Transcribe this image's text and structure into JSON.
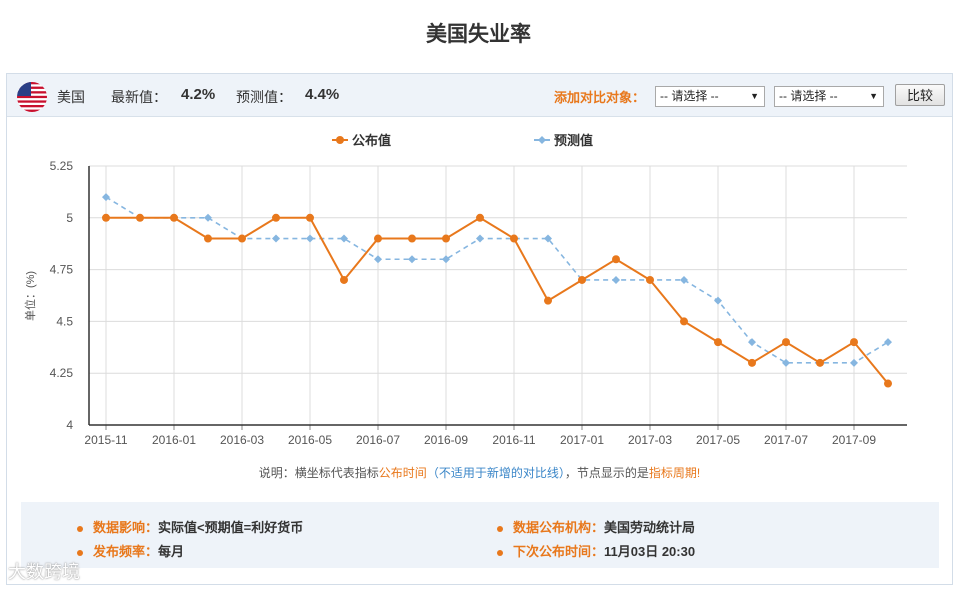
{
  "page_title": "美国失业率",
  "header": {
    "country": "美国",
    "latest_label": "最新值：",
    "latest_value": "4.2%",
    "forecast_label": "预测值：",
    "forecast_value": "4.4%",
    "compare_label": "添加对比对象：",
    "select1": "-- 请选择 --",
    "select2": "-- 请选择 --",
    "compare_button": "比较"
  },
  "chart_data": {
    "type": "line",
    "title": "",
    "ylabel": "单位：(%)",
    "xlabel": "",
    "ylim": [
      4,
      5.25
    ],
    "yticks": [
      4,
      4.25,
      4.5,
      4.75,
      5,
      5.25
    ],
    "ytick_labels": [
      "4",
      "4.25",
      "4.5",
      "4.75",
      "5",
      "5.25"
    ],
    "x": [
      "2015-11",
      "2015-12",
      "2016-01",
      "2016-02",
      "2016-03",
      "2016-04",
      "2016-05",
      "2016-06",
      "2016-07",
      "2016-08",
      "2016-09",
      "2016-10",
      "2016-11",
      "2016-12",
      "2017-01",
      "2017-02",
      "2017-03",
      "2017-04",
      "2017-05",
      "2017-06",
      "2017-07",
      "2017-08",
      "2017-09",
      "2017-10"
    ],
    "xtick_labels": [
      "2015-11",
      "2016-01",
      "2016-03",
      "2016-05",
      "2016-07",
      "2016-09",
      "2016-11",
      "2017-01",
      "2017-03",
      "2017-05",
      "2017-07",
      "2017-09"
    ],
    "series": [
      {
        "name": "公布值",
        "color": "#e8781c",
        "style": "solid",
        "values": [
          5.0,
          5.0,
          5.0,
          4.9,
          4.9,
          5.0,
          5.0,
          4.7,
          4.9,
          4.9,
          4.9,
          5.0,
          4.9,
          4.6,
          4.7,
          4.8,
          4.7,
          4.5,
          4.4,
          4.3,
          4.4,
          4.3,
          4.4,
          4.2
        ]
      },
      {
        "name": "预测值",
        "color": "#86b6e0",
        "style": "dashed",
        "values": [
          5.1,
          5.0,
          5.0,
          5.0,
          4.9,
          4.9,
          4.9,
          4.9,
          4.8,
          4.8,
          4.8,
          4.9,
          4.9,
          4.9,
          4.7,
          4.7,
          4.7,
          4.7,
          4.6,
          4.4,
          4.3,
          4.3,
          4.3,
          4.4
        ]
      }
    ],
    "grid": true,
    "legend": "top-center"
  },
  "note": {
    "prefix": "说明：横坐标代表指标",
    "orange1": "公布时间",
    "blue1": "（不适用于新增的对比线）",
    "middle": "，节点显示的是",
    "orange2": "指标周期",
    "suffix": "!"
  },
  "info": {
    "impact_key": "数据影响：",
    "impact_val": "实际值<预期值=利好货币",
    "agency_key": "数据公布机构：",
    "agency_val": "美国劳动统计局",
    "freq_key": "发布频率：",
    "freq_val": "每月",
    "next_key": "下次公布时间：",
    "next_val": "11月03日 20:30"
  },
  "watermark": "大数跨境"
}
